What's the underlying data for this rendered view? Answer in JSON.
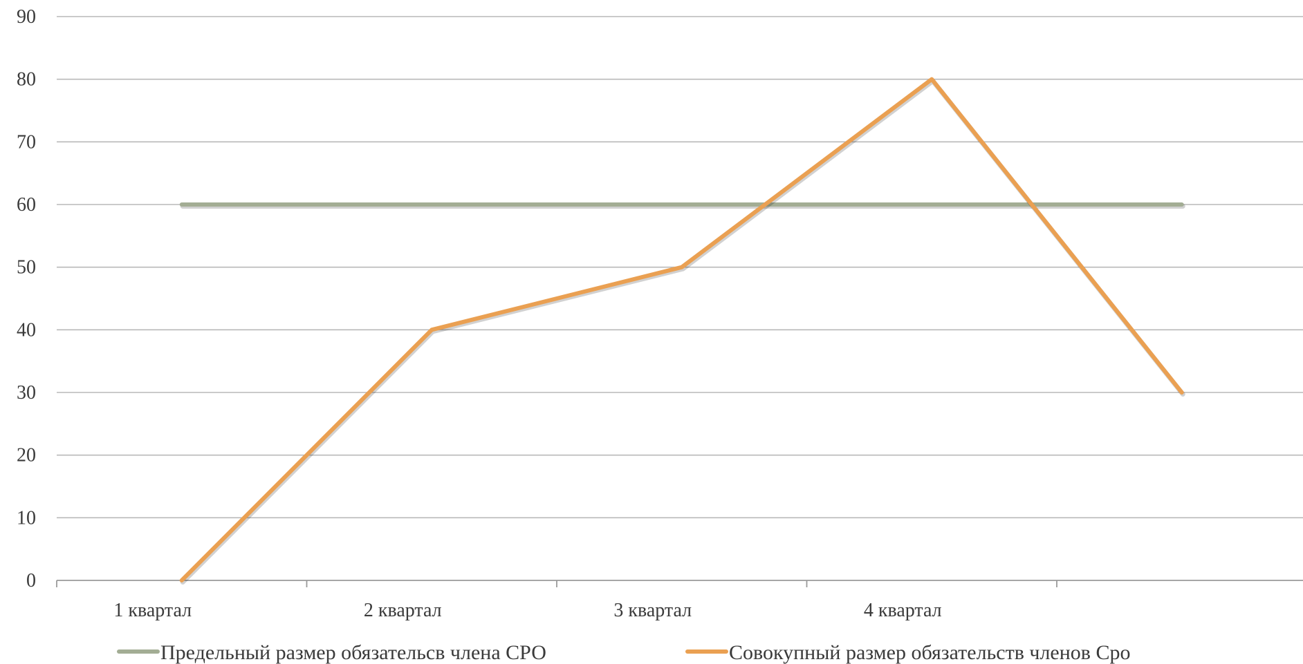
{
  "chart_data": {
    "type": "line",
    "title": "",
    "xlabel": "",
    "ylabel": "",
    "ylim": [
      0,
      90
    ],
    "y_ticks": [
      0,
      10,
      20,
      30,
      40,
      50,
      60,
      70,
      80,
      90
    ],
    "categories": [
      "1 квартал",
      "2 квартал",
      "3 квартал",
      "4 квартал"
    ],
    "x_ticks": [
      1,
      2,
      3,
      4
    ],
    "grid": true,
    "legend_position": "bottom",
    "series": [
      {
        "name": "Предельный размер обязательсв члена СРО",
        "color": "#a3ad94",
        "x": [
          1,
          5
        ],
        "values": [
          60,
          60
        ]
      },
      {
        "name": "Совокупный размер обязательств членов Сро",
        "color": "#eaa052",
        "x": [
          1,
          2,
          3,
          4,
          5
        ],
        "values": [
          0,
          40,
          50,
          80,
          30
        ]
      }
    ]
  }
}
